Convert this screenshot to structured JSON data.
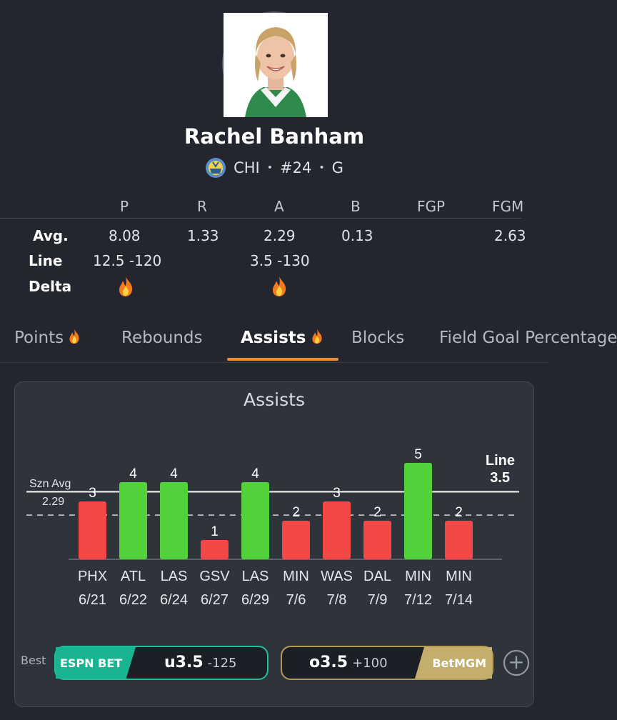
{
  "player": {
    "name": "Rachel Banham",
    "team": "CHI",
    "number": "#24",
    "position": "G",
    "separator": "•"
  },
  "stats_table": {
    "columns": [
      "P",
      "R",
      "A",
      "B",
      "FGP",
      "FGM"
    ],
    "rows": [
      {
        "label": "Avg.",
        "values": [
          "8.08",
          "1.33",
          "2.29",
          "0.13",
          "",
          "2.63"
        ]
      },
      {
        "label": "Line",
        "values": [
          "12.5 -120",
          "",
          "3.5 -130",
          "",
          "",
          ""
        ]
      },
      {
        "label": "Delta",
        "values": [
          "fire-icon",
          "",
          "fire-icon",
          "",
          "",
          ""
        ]
      }
    ]
  },
  "tabs": [
    {
      "label": "Points",
      "fire": true
    },
    {
      "label": "Rebounds",
      "fire": false
    },
    {
      "label": "Assists",
      "fire": true,
      "active": true
    },
    {
      "label": "Blocks",
      "fire": false
    },
    {
      "label": "Field Goal Percentage",
      "fire": false
    }
  ],
  "chart_card": {
    "title": "Assists",
    "season_avg_label": "Szn Avg",
    "line_label": "Line"
  },
  "chart_data": {
    "type": "bar",
    "title": "Assists",
    "categories": [
      "PHX 6/21",
      "ATL 6/22",
      "LAS 6/24",
      "GSV 6/27",
      "LAS 6/29",
      "MIN 7/6",
      "WAS 7/8",
      "DAL 7/9",
      "MIN 7/12",
      "MIN 7/14"
    ],
    "opponents": [
      "PHX",
      "ATL",
      "LAS",
      "GSV",
      "LAS",
      "MIN",
      "WAS",
      "DAL",
      "MIN",
      "MIN"
    ],
    "dates": [
      "6/21",
      "6/22",
      "6/24",
      "6/27",
      "6/29",
      "7/6",
      "7/8",
      "7/9",
      "7/12",
      "7/14"
    ],
    "values": [
      3,
      4,
      4,
      1,
      4,
      2,
      3,
      2,
      5,
      2
    ],
    "line": 3.5,
    "season_avg": 2.29,
    "ylim": [
      0,
      5
    ],
    "colors": {
      "over": "#53d13a",
      "under": "#f24848"
    }
  },
  "odds": {
    "best_label": "Best",
    "under": {
      "book": "ESPN BET",
      "line": "u3.5",
      "price": "-125"
    },
    "over": {
      "book": "BetMGM",
      "line": "o3.5",
      "price": "+100"
    },
    "add_label": "+"
  },
  "colors": {
    "background": "#23262e",
    "accent": "#f08c34",
    "espn": "#19b590",
    "mgm": "#c4ae6c"
  }
}
